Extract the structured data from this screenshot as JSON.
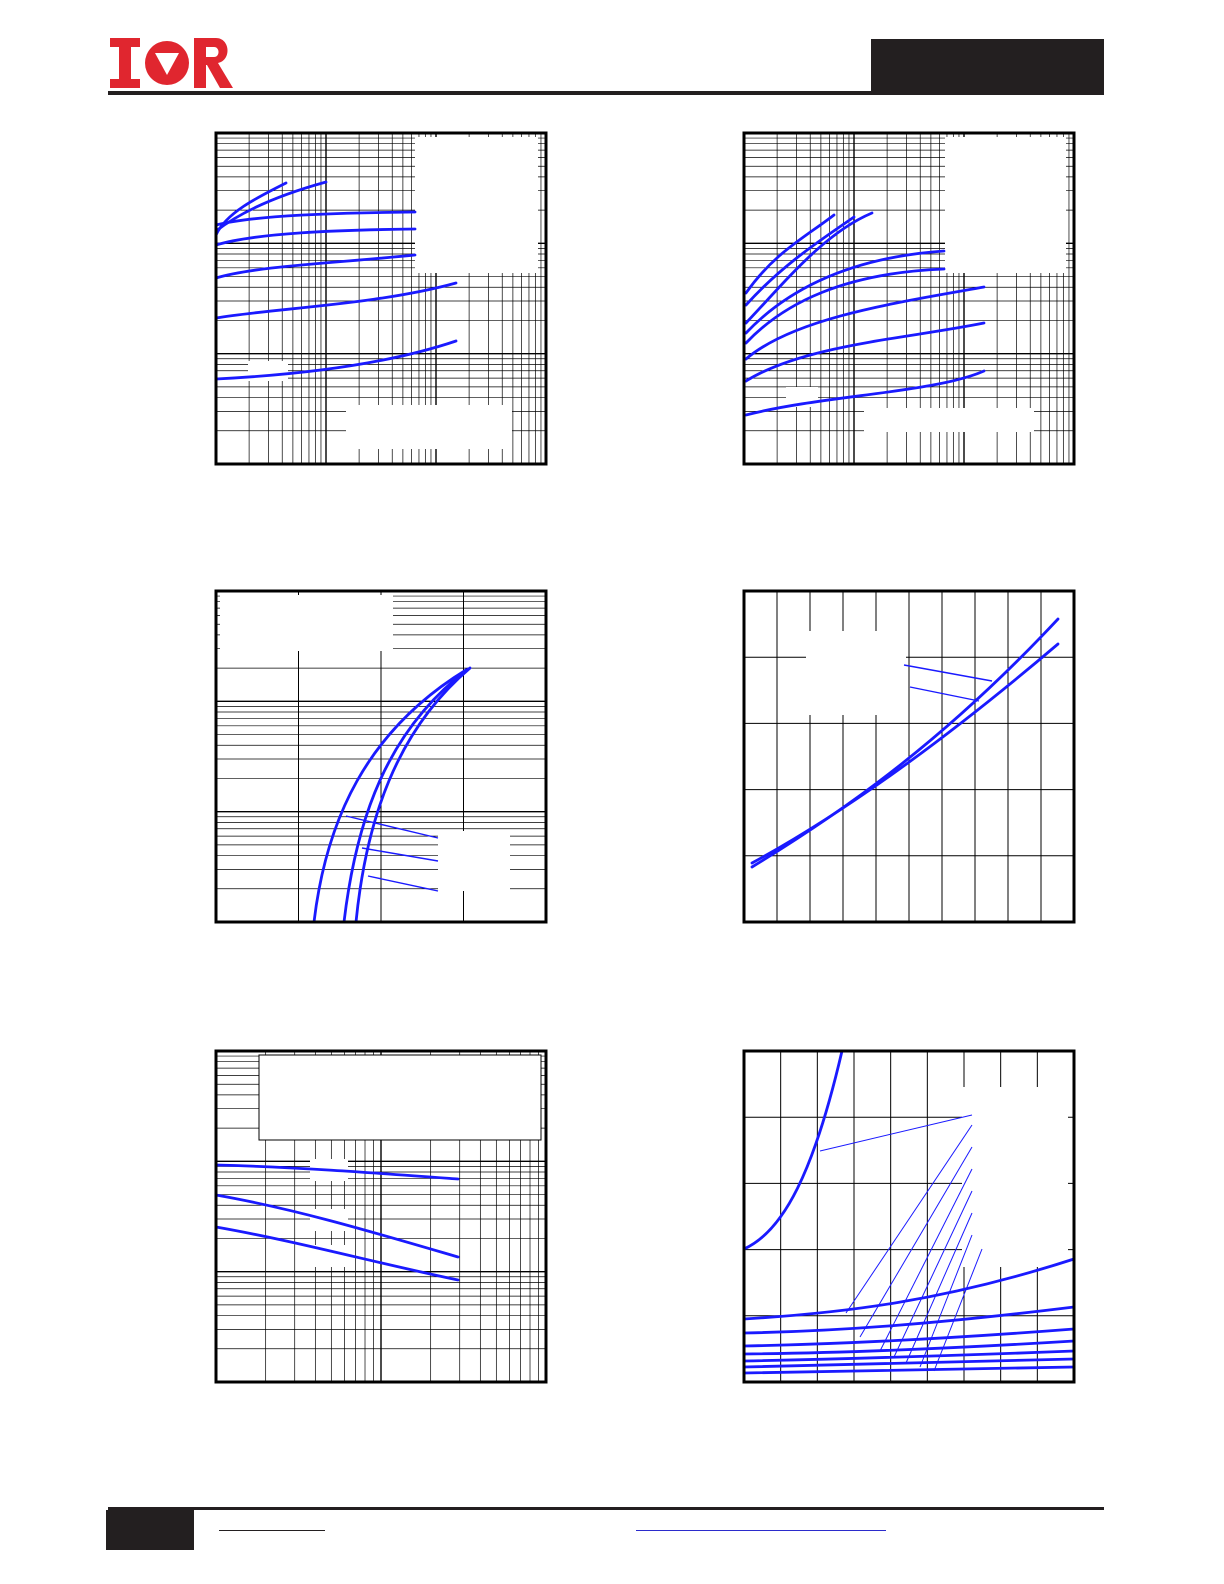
{
  "header": {
    "logo_text": "IOR",
    "brand_color": "#e0262f",
    "part_number": ""
  },
  "footer": {
    "page_number": "",
    "website": "",
    "doc_link": ""
  },
  "colors": {
    "curve": "#1a1aff",
    "grid": "#000000",
    "legend_box": "#ffffff"
  },
  "charts": [
    {
      "id": "fig1",
      "type": "line",
      "x_scale": "log",
      "y_scale": "log",
      "series_count": 8
    },
    {
      "id": "fig2",
      "type": "line",
      "x_scale": "log",
      "y_scale": "log",
      "series_count": 8
    },
    {
      "id": "fig3",
      "type": "line",
      "x_scale": "linear",
      "y_scale": "log",
      "series_count": 3
    },
    {
      "id": "fig4",
      "type": "line",
      "x_scale": "linear",
      "y_scale": "linear",
      "series_count": 2
    },
    {
      "id": "fig5",
      "type": "line",
      "x_scale": "log",
      "y_scale": "log",
      "series_count": 3
    },
    {
      "id": "fig6",
      "type": "line",
      "x_scale": "linear",
      "y_scale": "linear",
      "series_count": 8
    }
  ]
}
